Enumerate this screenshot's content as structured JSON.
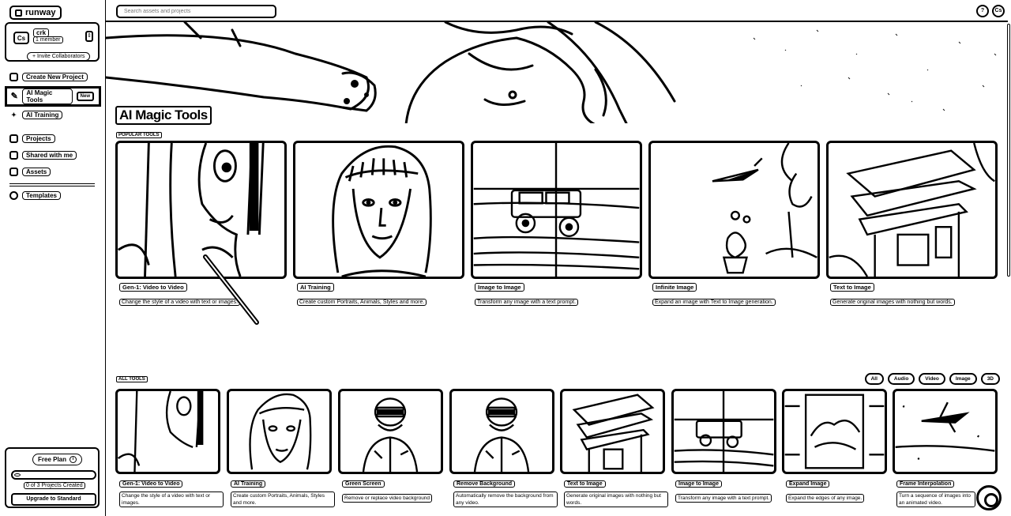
{
  "app": {
    "brand": "runway"
  },
  "team": {
    "avatar": "Cs",
    "name": "crk",
    "members": "1 member",
    "invite": "+ Invite Collaborators"
  },
  "nav": {
    "create": "Create New Project",
    "magic": "AI Magic Tools",
    "magic_badge": "New",
    "training": "AI Training",
    "projects": "Projects",
    "shared": "Shared with me",
    "assets": "Assets",
    "templates": "Templates"
  },
  "plan": {
    "title": "Free Plan",
    "count": "0 of 3 Projects Created",
    "upgrade": "Upgrade to Standard",
    "progress": 0
  },
  "search": {
    "placeholder": "Search assets and projects"
  },
  "topbar": {
    "help": "?",
    "user": "Cs"
  },
  "hero": {
    "title": "AI Magic Tools"
  },
  "popular": {
    "label": "POPULAR TOOLS",
    "cards": [
      {
        "title": "Gen-1: Video to Video",
        "desc": "Change the style of a video with text or images."
      },
      {
        "title": "AI Training",
        "desc": "Create custom Portraits, Animals, Styles and more."
      },
      {
        "title": "Image to Image",
        "desc": "Transform any image with a text prompt."
      },
      {
        "title": "Infinite Image",
        "desc": "Expand an image with Text to Image generation."
      },
      {
        "title": "Text to Image",
        "desc": "Generate original images with nothing but words."
      }
    ]
  },
  "all": {
    "label": "ALL TOOLS",
    "filters": [
      "All",
      "Audio",
      "Video",
      "Image",
      "3D"
    ],
    "cards": [
      {
        "title": "Gen-1: Video to Video",
        "desc": "Change the style of a video with text or images."
      },
      {
        "title": "AI Training",
        "desc": "Create custom Portraits, Animals, Styles and more."
      },
      {
        "title": "Green Screen",
        "desc": "Remove or replace video background"
      },
      {
        "title": "Remove Background",
        "desc": "Automatically remove the background from any video."
      },
      {
        "title": "Text to Image",
        "desc": "Generate original images with nothing but words."
      },
      {
        "title": "Image to Image",
        "desc": "Transform any image with a text prompt."
      },
      {
        "title": "Expand Image",
        "desc": "Expand the edges of any image."
      },
      {
        "title": "Frame Interpolation",
        "desc": "Turn a sequence of images into an animated video."
      }
    ]
  }
}
